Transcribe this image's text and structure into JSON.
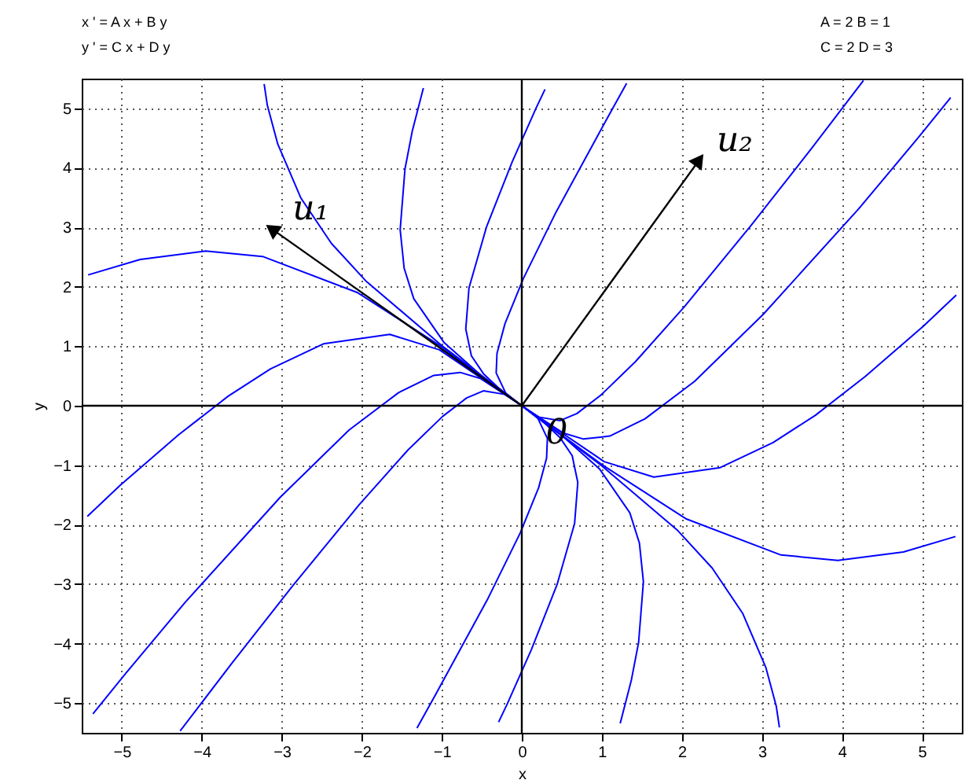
{
  "chart_data": {
    "type": "line",
    "xlabel": "x",
    "ylabel": "y",
    "xlim": [
      -5.5,
      5.5
    ],
    "ylim": [
      -5.5,
      5.5
    ],
    "xticks": [
      -5,
      -4,
      -3,
      -2,
      -1,
      0,
      1,
      2,
      3,
      4,
      5
    ],
    "yticks": [
      -5,
      -4,
      -3,
      -2,
      -1,
      0,
      1,
      2,
      3,
      4,
      5
    ],
    "grid": true,
    "annotations": [
      "x ' = A x + B y",
      "y ' = C x + D y",
      "A = 2    B = 1",
      "C = 2    D = 3",
      "u₁",
      "u₂",
      {
        "text": "0",
        "x": 0.3,
        "y": -0.45
      }
    ],
    "series": [
      {
        "color": "#0000ff",
        "x": [
          -0.02,
          -0.1,
          -0.3,
          -0.48,
          -0.63,
          -0.7,
          -0.66,
          -0.44,
          -0.12,
          0.18,
          0.29
        ],
        "values": [
          0.02,
          0.1,
          0.31,
          0.54,
          0.84,
          1.29,
          1.98,
          3.01,
          4.1,
          5.01,
          5.32
        ]
      },
      {
        "color": "#0000ff",
        "x": [
          -0.02,
          -0.5,
          -0.97,
          -1.35,
          -1.47,
          -1.52,
          -1.46,
          -1.37,
          -1.23
        ],
        "values": [
          0.02,
          0.5,
          1.06,
          1.8,
          2.31,
          2.96,
          3.98,
          4.61,
          5.34
        ]
      },
      {
        "color": "#0000ff",
        "x": [
          -0.02,
          -1,
          -1.95,
          -2.38,
          -2.76,
          -3.05,
          -3.18,
          -3.22
        ],
        "values": [
          0.02,
          1.01,
          2.1,
          2.73,
          3.49,
          4.4,
          5.05,
          5.41
        ]
      },
      {
        "color": "#0000ff",
        "x": [
          -0.02,
          -1,
          -2.05,
          -3.24,
          -3.95,
          -4.77,
          -5.42
        ],
        "values": [
          0.02,
          0.99,
          1.9,
          2.51,
          2.6,
          2.46,
          2.2
        ]
      },
      {
        "color": "#0000ff",
        "x": [
          -0.02,
          -1.03,
          -1.65,
          -2.48,
          -3.14,
          -3.67,
          -4.29,
          -5.02,
          -5.43
        ],
        "values": [
          0.02,
          0.94,
          1.2,
          1.04,
          0.62,
          0.16,
          -0.49,
          -1.34,
          -1.86
        ]
      },
      {
        "color": "#0000ff",
        "x": [
          -0.02,
          -0.52,
          -0.77,
          -1.1,
          -1.54,
          -2.16,
          -3.02,
          -4.21,
          -4.95,
          -5.36
        ],
        "values": [
          0.02,
          0.46,
          0.56,
          0.51,
          0.22,
          -0.41,
          -1.54,
          -3.31,
          -4.5,
          -5.18
        ]
      },
      {
        "color": "#0000ff",
        "x": [
          -0.02,
          -0.21,
          -0.48,
          -0.69,
          -0.99,
          -1.42,
          -2.03,
          -2.87,
          -3.63,
          -4.27
        ],
        "values": [
          0.02,
          0.19,
          0.25,
          0.13,
          -0.18,
          -0.74,
          -1.66,
          -3.04,
          -4.34,
          -5.47
        ]
      },
      {
        "color": "#0000ff",
        "x": [
          -0.02,
          -0.2,
          -0.32,
          -0.31,
          -0.21,
          0.02,
          0.43,
          1.07,
          1.31
        ],
        "values": [
          0.02,
          0.21,
          0.55,
          0.88,
          1.38,
          2.14,
          3.26,
          4.84,
          5.42
        ]
      },
      {
        "color": "#0000ff",
        "x": [
          0.02,
          0.1,
          0.3,
          0.48,
          0.63,
          0.7,
          0.66,
          0.44,
          0.12,
          -0.18,
          -0.29
        ],
        "values": [
          -0.02,
          -0.1,
          -0.31,
          -0.54,
          -0.84,
          -1.29,
          -1.98,
          -3.01,
          -4.1,
          -5.01,
          -5.32
        ]
      },
      {
        "color": "#0000ff",
        "x": [
          0.02,
          0.5,
          0.97,
          1.35,
          1.47,
          1.52,
          1.46,
          1.37,
          1.23
        ],
        "values": [
          -0.02,
          -0.5,
          -1.06,
          -1.8,
          -2.31,
          -2.96,
          -3.98,
          -4.61,
          -5.34
        ]
      },
      {
        "color": "#0000ff",
        "x": [
          0.02,
          1,
          1.95,
          2.38,
          2.76,
          3.05,
          3.18,
          3.22
        ],
        "values": [
          -0.02,
          -1.01,
          -2.1,
          -2.73,
          -3.49,
          -4.4,
          -5.05,
          -5.41
        ]
      },
      {
        "color": "#0000ff",
        "x": [
          0.02,
          1,
          2.05,
          3.24,
          3.95,
          4.77,
          5.42
        ],
        "values": [
          -0.02,
          -0.99,
          -1.9,
          -2.51,
          -2.6,
          -2.46,
          -2.2
        ]
      },
      {
        "color": "#0000ff",
        "x": [
          0.02,
          1.03,
          1.65,
          2.48,
          3.14,
          3.67,
          4.29,
          5.02,
          5.43
        ],
        "values": [
          -0.02,
          -0.94,
          -1.2,
          -1.04,
          -0.62,
          -0.16,
          0.49,
          1.34,
          1.86
        ]
      },
      {
        "color": "#0000ff",
        "x": [
          0.02,
          0.52,
          0.77,
          1.1,
          1.54,
          2.16,
          3.02,
          4.21,
          4.95,
          5.36
        ],
        "values": [
          -0.02,
          -0.46,
          -0.56,
          -0.51,
          -0.22,
          0.41,
          1.54,
          3.31,
          4.5,
          5.18
        ]
      },
      {
        "color": "#0000ff",
        "x": [
          0.02,
          0.21,
          0.48,
          0.69,
          0.99,
          1.42,
          2.03,
          2.87,
          3.63,
          4.27
        ],
        "values": [
          -0.02,
          -0.19,
          -0.25,
          -0.13,
          0.18,
          0.74,
          1.66,
          3.04,
          4.34,
          5.47
        ]
      },
      {
        "color": "#0000ff",
        "x": [
          0.02,
          0.2,
          0.32,
          0.31,
          0.21,
          -0.02,
          -0.43,
          -1.07,
          -1.31
        ],
        "values": [
          -0.02,
          -0.21,
          -0.55,
          -0.88,
          -1.38,
          -2.14,
          -3.26,
          -4.84,
          -5.42
        ]
      },
      {
        "color": "#000000",
        "x": [
          -5.5,
          5.5
        ],
        "values": [
          0,
          0
        ]
      },
      {
        "color": "#000000",
        "x": [
          0,
          0
        ],
        "values": [
          -5.5,
          5.5
        ]
      },
      {
        "color": "#000000",
        "x": [
          0,
          -3.1
        ],
        "values": [
          0,
          2.95
        ]
      },
      {
        "color": "#000000",
        "x": [
          0,
          2.2
        ],
        "values": [
          0,
          4.1
        ]
      }
    ]
  }
}
